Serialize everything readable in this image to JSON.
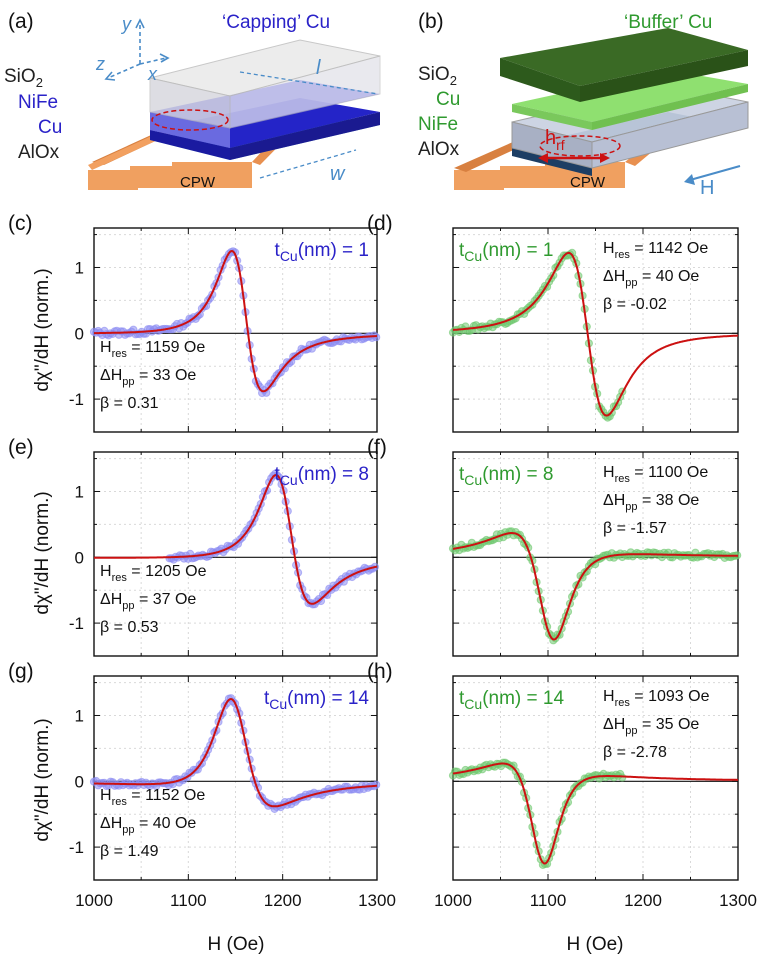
{
  "colors": {
    "blue": "#2a22c8",
    "blue_marker": "#8c8cf2",
    "green": "#2f9a2f",
    "green_marker": "#6fc86f",
    "fit": "#cc1111",
    "copper": "#f2a060",
    "grid": "#d9d9d9"
  },
  "schematic_a": {
    "panel_label": "(a)",
    "title": "‘Capping’ Cu",
    "layers": [
      "SiO",
      "NiFe",
      "Cu",
      "AlOx"
    ],
    "sio2_sub": "2",
    "axis_y": "y",
    "axis_z": "z",
    "axis_x": "x",
    "dim_l": "l",
    "dim_w": "w",
    "cpw": "CPW"
  },
  "schematic_b": {
    "panel_label": "(b)",
    "title": "‘Buffer’ Cu",
    "layers": [
      "SiO",
      "Cu",
      "NiFe",
      "AlOx"
    ],
    "sio2_sub": "2",
    "hrf_main": "h",
    "hrf_sub": "rf",
    "cpw": "CPW",
    "field": "H"
  },
  "axes": {
    "ylabel_left": "dχ\"/dH (norm.)",
    "xlabel": "H (Oe)"
  },
  "chart_data": [
    {
      "type": "line",
      "panel": "(c)",
      "color": "blue",
      "placement": "top-right",
      "title": "t",
      "title_sub": "Cu",
      "title_suffix": "(nm) = 1",
      "params": [
        "H",
        "res",
        " = 1159 Oe",
        "ΔH",
        "pp",
        " = 33 Oe",
        "β = 0.31"
      ],
      "params_placement": "bottom-left",
      "xlim": [
        1000,
        1300
      ],
      "ylim": [
        -1.5,
        1.6
      ],
      "grid": true,
      "x_ticks": [],
      "y_ticks": [
        -1,
        0,
        1
      ],
      "fit": {
        "Hr": 1159,
        "dH": 33,
        "beta": 0.31
      },
      "data_x_range": [
        1000,
        1300
      ]
    },
    {
      "type": "line",
      "panel": "(d)",
      "color": "green",
      "placement": "top-left",
      "title": "t",
      "title_sub": "Cu",
      "title_suffix": "(nm) = 1",
      "params": [
        "H",
        "res",
        " = 1142 Oe",
        "ΔH",
        "pp",
        " = 40 Oe",
        "β = -0.02"
      ],
      "params_placement": "top-right",
      "xlim": [
        1000,
        1300
      ],
      "ylim": [
        -1.5,
        1.6
      ],
      "grid": true,
      "x_ticks": [],
      "y_ticks": [],
      "fit": {
        "Hr": 1142,
        "dH": 40,
        "beta": -0.02
      },
      "data_x_range": [
        1000,
        1180
      ]
    },
    {
      "type": "line",
      "panel": "(e)",
      "color": "blue",
      "placement": "top-right",
      "title": "t",
      "title_sub": "Cu",
      "title_suffix": "(nm) = 8",
      "params": [
        "H",
        "res",
        " = 1205 Oe",
        "ΔH",
        "pp",
        " = 37 Oe",
        "β = 0.53"
      ],
      "params_placement": "bottom-left",
      "xlim": [
        1000,
        1300
      ],
      "ylim": [
        -1.5,
        1.6
      ],
      "grid": true,
      "x_ticks": [],
      "y_ticks": [
        -1,
        0,
        1
      ],
      "fit": {
        "Hr": 1205,
        "dH": 37,
        "beta": 0.53
      },
      "data_x_range": [
        1080,
        1300
      ]
    },
    {
      "type": "line",
      "panel": "(f)",
      "color": "green",
      "placement": "top-left",
      "title": "t",
      "title_sub": "Cu",
      "title_suffix": "(nm) = 8",
      "params": [
        "H",
        "res",
        " = 1100 Oe",
        "ΔH",
        "pp",
        " = 38 Oe",
        "β = -1.57"
      ],
      "params_placement": "top-right",
      "xlim": [
        1000,
        1300
      ],
      "ylim": [
        -1.5,
        1.6
      ],
      "grid": true,
      "x_ticks": [],
      "y_ticks": [],
      "fit": {
        "Hr": 1100,
        "dH": 38,
        "beta": -1.57
      },
      "data_x_range": [
        1000,
        1300
      ]
    },
    {
      "type": "line",
      "panel": "(g)",
      "color": "blue",
      "placement": "top-right",
      "title": "t",
      "title_sub": "Cu",
      "title_suffix": "(nm) = 14",
      "params": [
        "H",
        "res",
        " = 1152 Oe",
        "ΔH",
        "pp",
        " = 40 Oe",
        "β = 1.49"
      ],
      "params_placement": "bottom-left",
      "xlim": [
        1000,
        1300
      ],
      "ylim": [
        -1.5,
        1.6
      ],
      "grid": true,
      "x_ticks": [
        1000,
        1100,
        1200,
        1300
      ],
      "y_ticks": [
        -1,
        0,
        1
      ],
      "fit": {
        "Hr": 1152,
        "dH": 40,
        "beta": 1.49
      },
      "data_x_range": [
        1000,
        1300
      ]
    },
    {
      "type": "line",
      "panel": "(h)",
      "color": "green",
      "placement": "top-left",
      "title": "t",
      "title_sub": "Cu",
      "title_suffix": "(nm) = 14",
      "params": [
        "H",
        "res",
        " = 1093 Oe",
        "ΔH",
        "pp",
        " = 35 Oe",
        "β = -2.78"
      ],
      "params_placement": "top-right",
      "xlim": [
        1000,
        1300
      ],
      "ylim": [
        -1.5,
        1.6
      ],
      "grid": true,
      "x_ticks": [
        1000,
        1100,
        1200,
        1300
      ],
      "y_ticks": [],
      "fit": {
        "Hr": 1093,
        "dH": 35,
        "beta": -2.78
      },
      "data_x_range": [
        1000,
        1180
      ]
    }
  ]
}
